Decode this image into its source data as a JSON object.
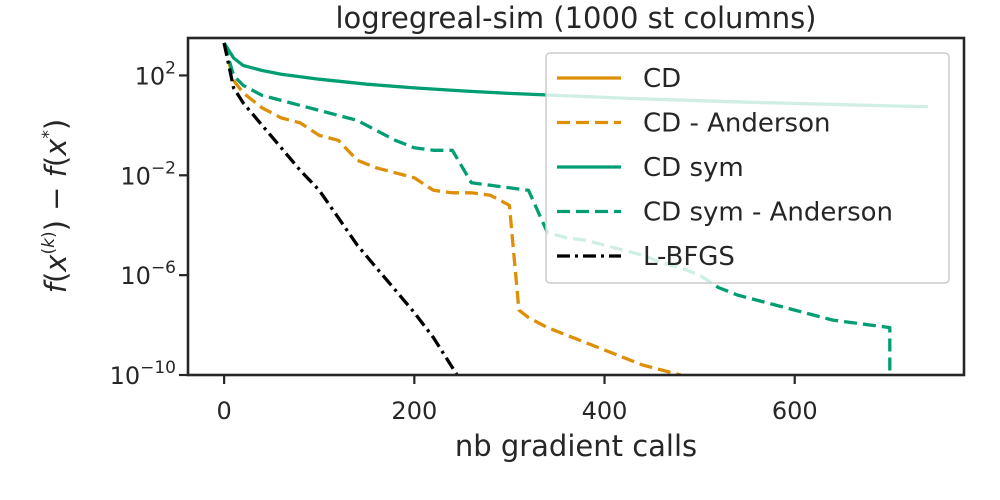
{
  "chart_data": {
    "type": "line",
    "title": "logregreal-sim (1000 st columns)",
    "xlabel": "nb gradient calls",
    "ylabel": "f(x(k)) − f(x*)",
    "y_scale": "log",
    "xlim": [
      -38,
      778
    ],
    "ylim_log10": [
      -10,
      3.5
    ],
    "x_ticks": [
      0,
      200,
      400,
      600
    ],
    "x_tick_labels": [
      "0",
      "200",
      "400",
      "600"
    ],
    "y_ticks_log10": [
      2,
      -2,
      -6,
      -10
    ],
    "grid": false,
    "legend_position": "top-right",
    "series": [
      {
        "name": "CD",
        "color": "#de8f05",
        "dash": "solid",
        "x": [
          0
        ],
        "y_log10": [
          3.3
        ]
      },
      {
        "name": "CD - Anderson",
        "color": "#de8f05",
        "dash": "dashed",
        "x": [
          0,
          10,
          20,
          40,
          60,
          80,
          100,
          120,
          140,
          160,
          180,
          200,
          220,
          240,
          260,
          280,
          300,
          310,
          320,
          340,
          360,
          380,
          400,
          420,
          440,
          460,
          480
        ],
        "y_log10": [
          3.3,
          1.8,
          1.3,
          0.7,
          0.3,
          0.1,
          -0.4,
          -0.6,
          -1.4,
          -1.7,
          -1.9,
          -2.1,
          -2.6,
          -2.7,
          -2.7,
          -2.8,
          -3.2,
          -7.4,
          -7.7,
          -8.1,
          -8.4,
          -8.7,
          -9.0,
          -9.3,
          -9.6,
          -9.8,
          -10.0
        ]
      },
      {
        "name": "CD sym",
        "color": "#029e73",
        "dash": "solid",
        "x": [
          0,
          10,
          20,
          40,
          60,
          80,
          100,
          150,
          200,
          250,
          300,
          350,
          400,
          450,
          500,
          550,
          600,
          650,
          700,
          740
        ],
        "y_log10": [
          3.3,
          2.7,
          2.4,
          2.2,
          2.05,
          1.95,
          1.85,
          1.65,
          1.5,
          1.38,
          1.28,
          1.2,
          1.12,
          1.05,
          0.99,
          0.93,
          0.88,
          0.83,
          0.78,
          0.75
        ]
      },
      {
        "name": "CD sym - Anderson",
        "color": "#029e73",
        "dash": "dashed",
        "x": [
          0,
          10,
          20,
          40,
          60,
          80,
          100,
          120,
          140,
          160,
          180,
          200,
          220,
          240,
          260,
          280,
          300,
          320,
          340,
          360,
          380,
          400,
          420,
          440,
          460,
          480,
          500,
          520,
          540,
          560,
          580,
          600,
          620,
          640,
          660,
          680,
          700,
          700
        ],
        "y_log10": [
          3.3,
          2.0,
          1.6,
          1.2,
          1.0,
          0.8,
          0.6,
          0.4,
          0.2,
          -0.2,
          -0.6,
          -0.9,
          -1.0,
          -1.0,
          -2.3,
          -2.4,
          -2.5,
          -2.6,
          -4.3,
          -4.5,
          -4.6,
          -4.8,
          -5.0,
          -5.2,
          -5.5,
          -5.7,
          -6.0,
          -6.5,
          -6.8,
          -7.0,
          -7.2,
          -7.4,
          -7.6,
          -7.8,
          -7.9,
          -8.0,
          -8.1,
          -10.0
        ]
      },
      {
        "name": "L-BFGS",
        "color": "#000000",
        "dash": "dashdot",
        "x": [
          0,
          10,
          20,
          40,
          60,
          80,
          100,
          120,
          140,
          160,
          180,
          200,
          220,
          245
        ],
        "y_log10": [
          3.3,
          1.5,
          0.9,
          0.0,
          -0.9,
          -1.8,
          -2.6,
          -3.7,
          -4.8,
          -5.7,
          -6.6,
          -7.5,
          -8.5,
          -10.0
        ]
      }
    ]
  }
}
